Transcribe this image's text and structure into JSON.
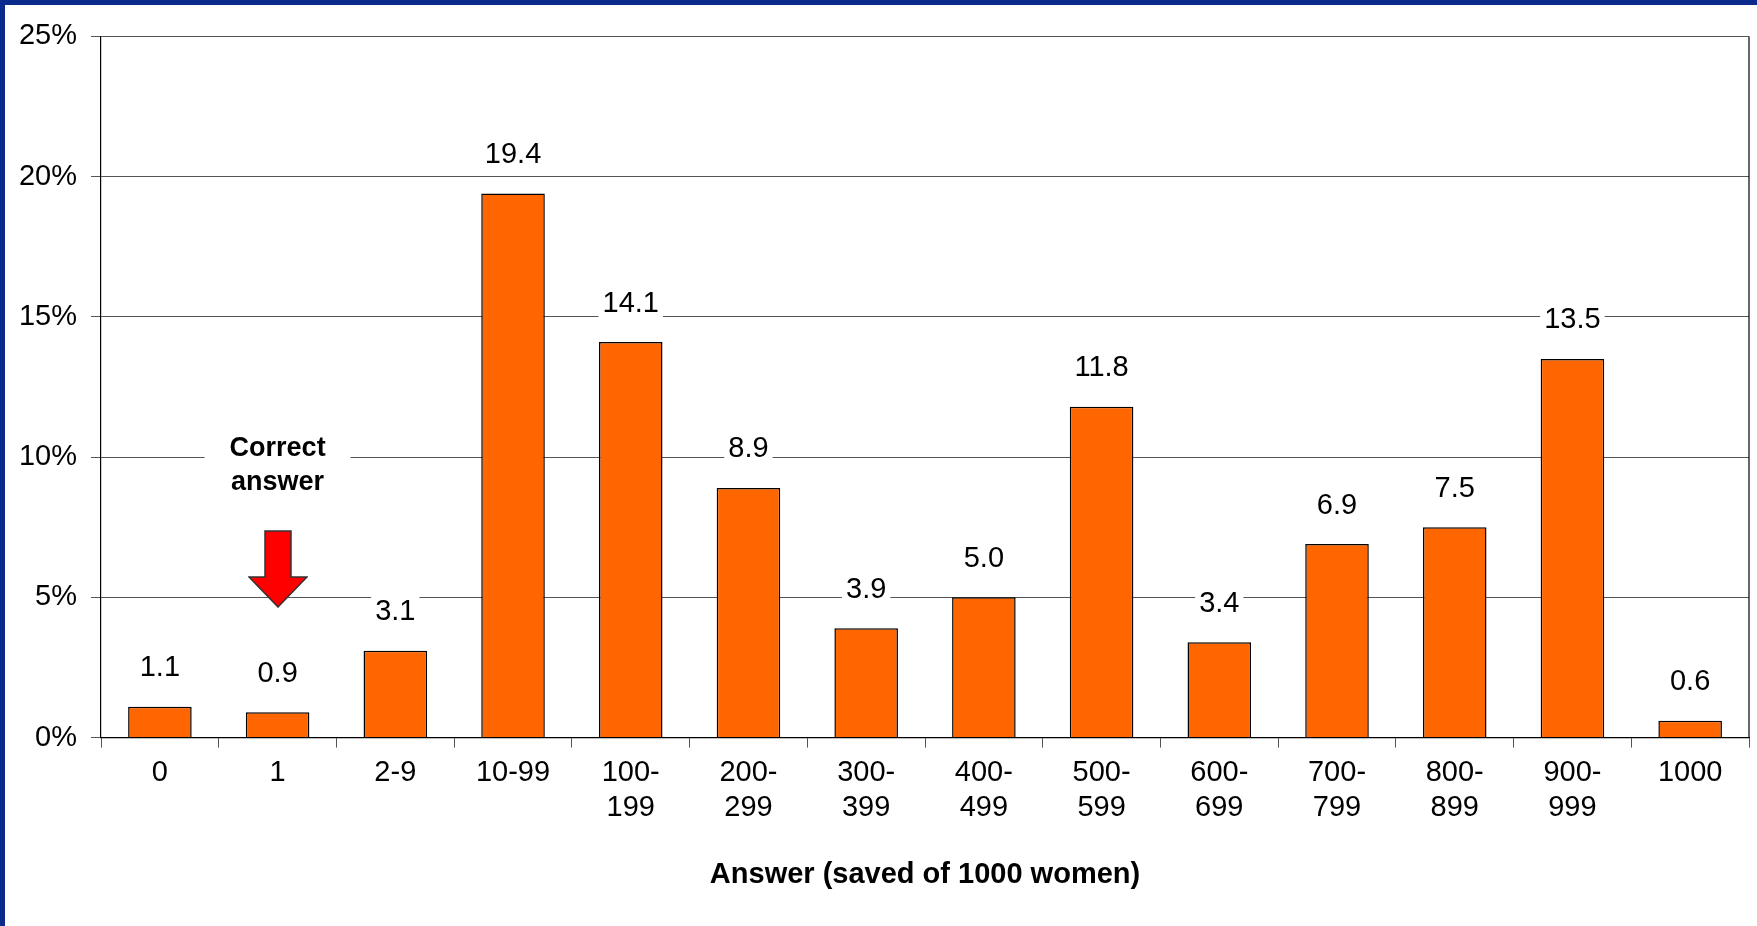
{
  "chart_data": {
    "type": "bar",
    "xlabel": "Answer (saved of 1000 women)",
    "categories": [
      "0",
      "1",
      "2-9",
      "10-99",
      "100-199",
      "200-299",
      "300-399",
      "400-499",
      "500-599",
      "600-699",
      "700-799",
      "800-899",
      "900-999",
      "1000"
    ],
    "values": [
      1.1,
      0.9,
      3.1,
      19.4,
      14.1,
      8.9,
      3.9,
      5.0,
      11.8,
      3.4,
      6.9,
      7.5,
      13.5,
      0.6
    ],
    "value_labels": [
      "1.1",
      "0.9",
      "3.1",
      "19.4",
      "14.1",
      "8.9",
      "3.9",
      "5.0",
      "11.8",
      "3.4",
      "6.9",
      "7.5",
      "13.5",
      "0.6"
    ],
    "color": "#ff6600",
    "ylim": [
      0,
      25
    ],
    "yticks": [
      {
        "value": 0,
        "label": "0%"
      },
      {
        "value": 5,
        "label": "5%"
      },
      {
        "value": 10,
        "label": "10%"
      },
      {
        "value": 15,
        "label": "15%"
      },
      {
        "value": 20,
        "label": "20%"
      },
      {
        "value": 25,
        "label": "25%"
      }
    ],
    "grid": "y",
    "legend": false,
    "annotations": [
      "Correct answer"
    ]
  }
}
